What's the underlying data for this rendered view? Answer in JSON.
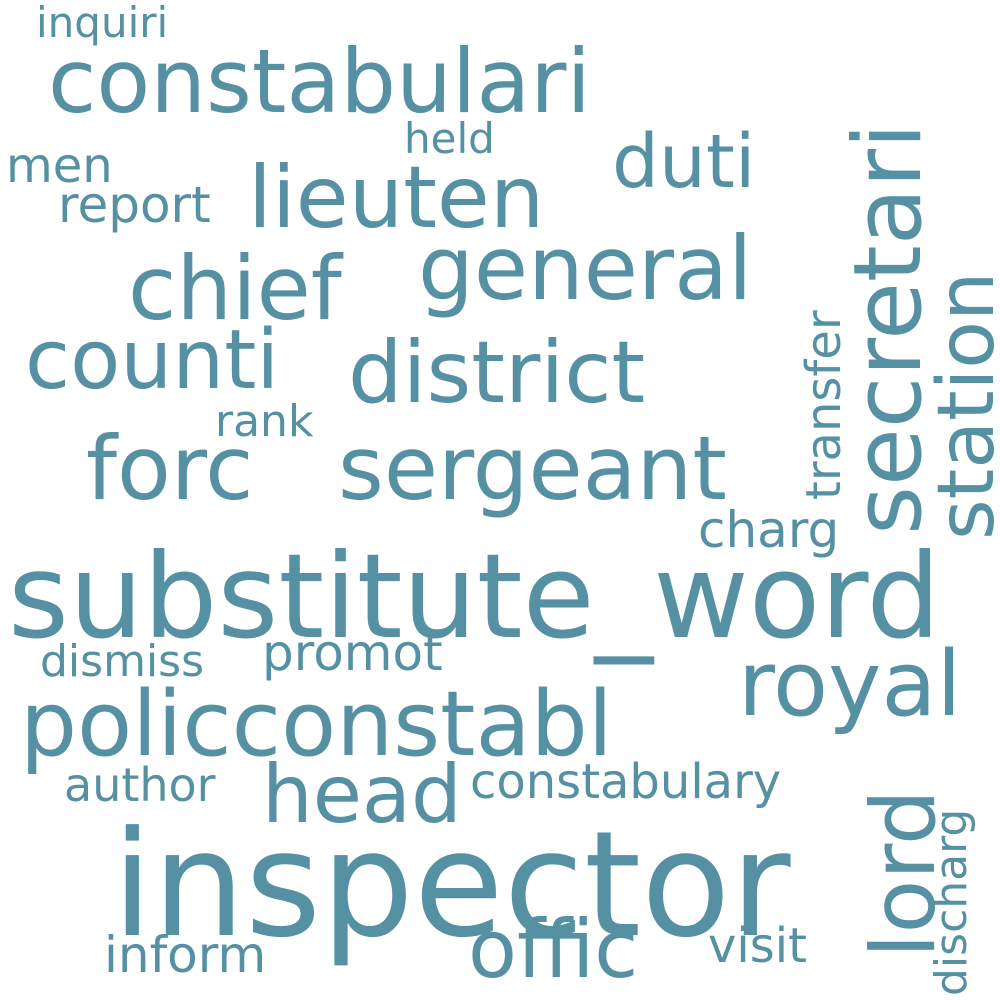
{
  "color": "#5590a3",
  "background": "#ffffff",
  "words": {
    "substitute_word": "substitute_word",
    "inspector": "inspector",
    "constabulari": "constabulari",
    "lieuten": "lieuten",
    "chief": "chief",
    "general": "general",
    "counti": "counti",
    "district": "district",
    "forc": "forc",
    "sergeant": "sergeant",
    "duti": "duti",
    "policconstabl": "policconstabl",
    "royal": "royal",
    "head": "head",
    "offic": "offic",
    "secretari": "secretari",
    "station": "station",
    "transfer": "transfer",
    "lord": "lord",
    "discharg": "discharg",
    "inquiri": "inquiri",
    "held": "held",
    "men": "men",
    "report": "report",
    "rank": "rank",
    "charg": "charg",
    "dismiss": "dismiss",
    "promot": "promot",
    "author": "author",
    "constabulary": "constabulary",
    "inform": "inform",
    "visit": "visit"
  }
}
